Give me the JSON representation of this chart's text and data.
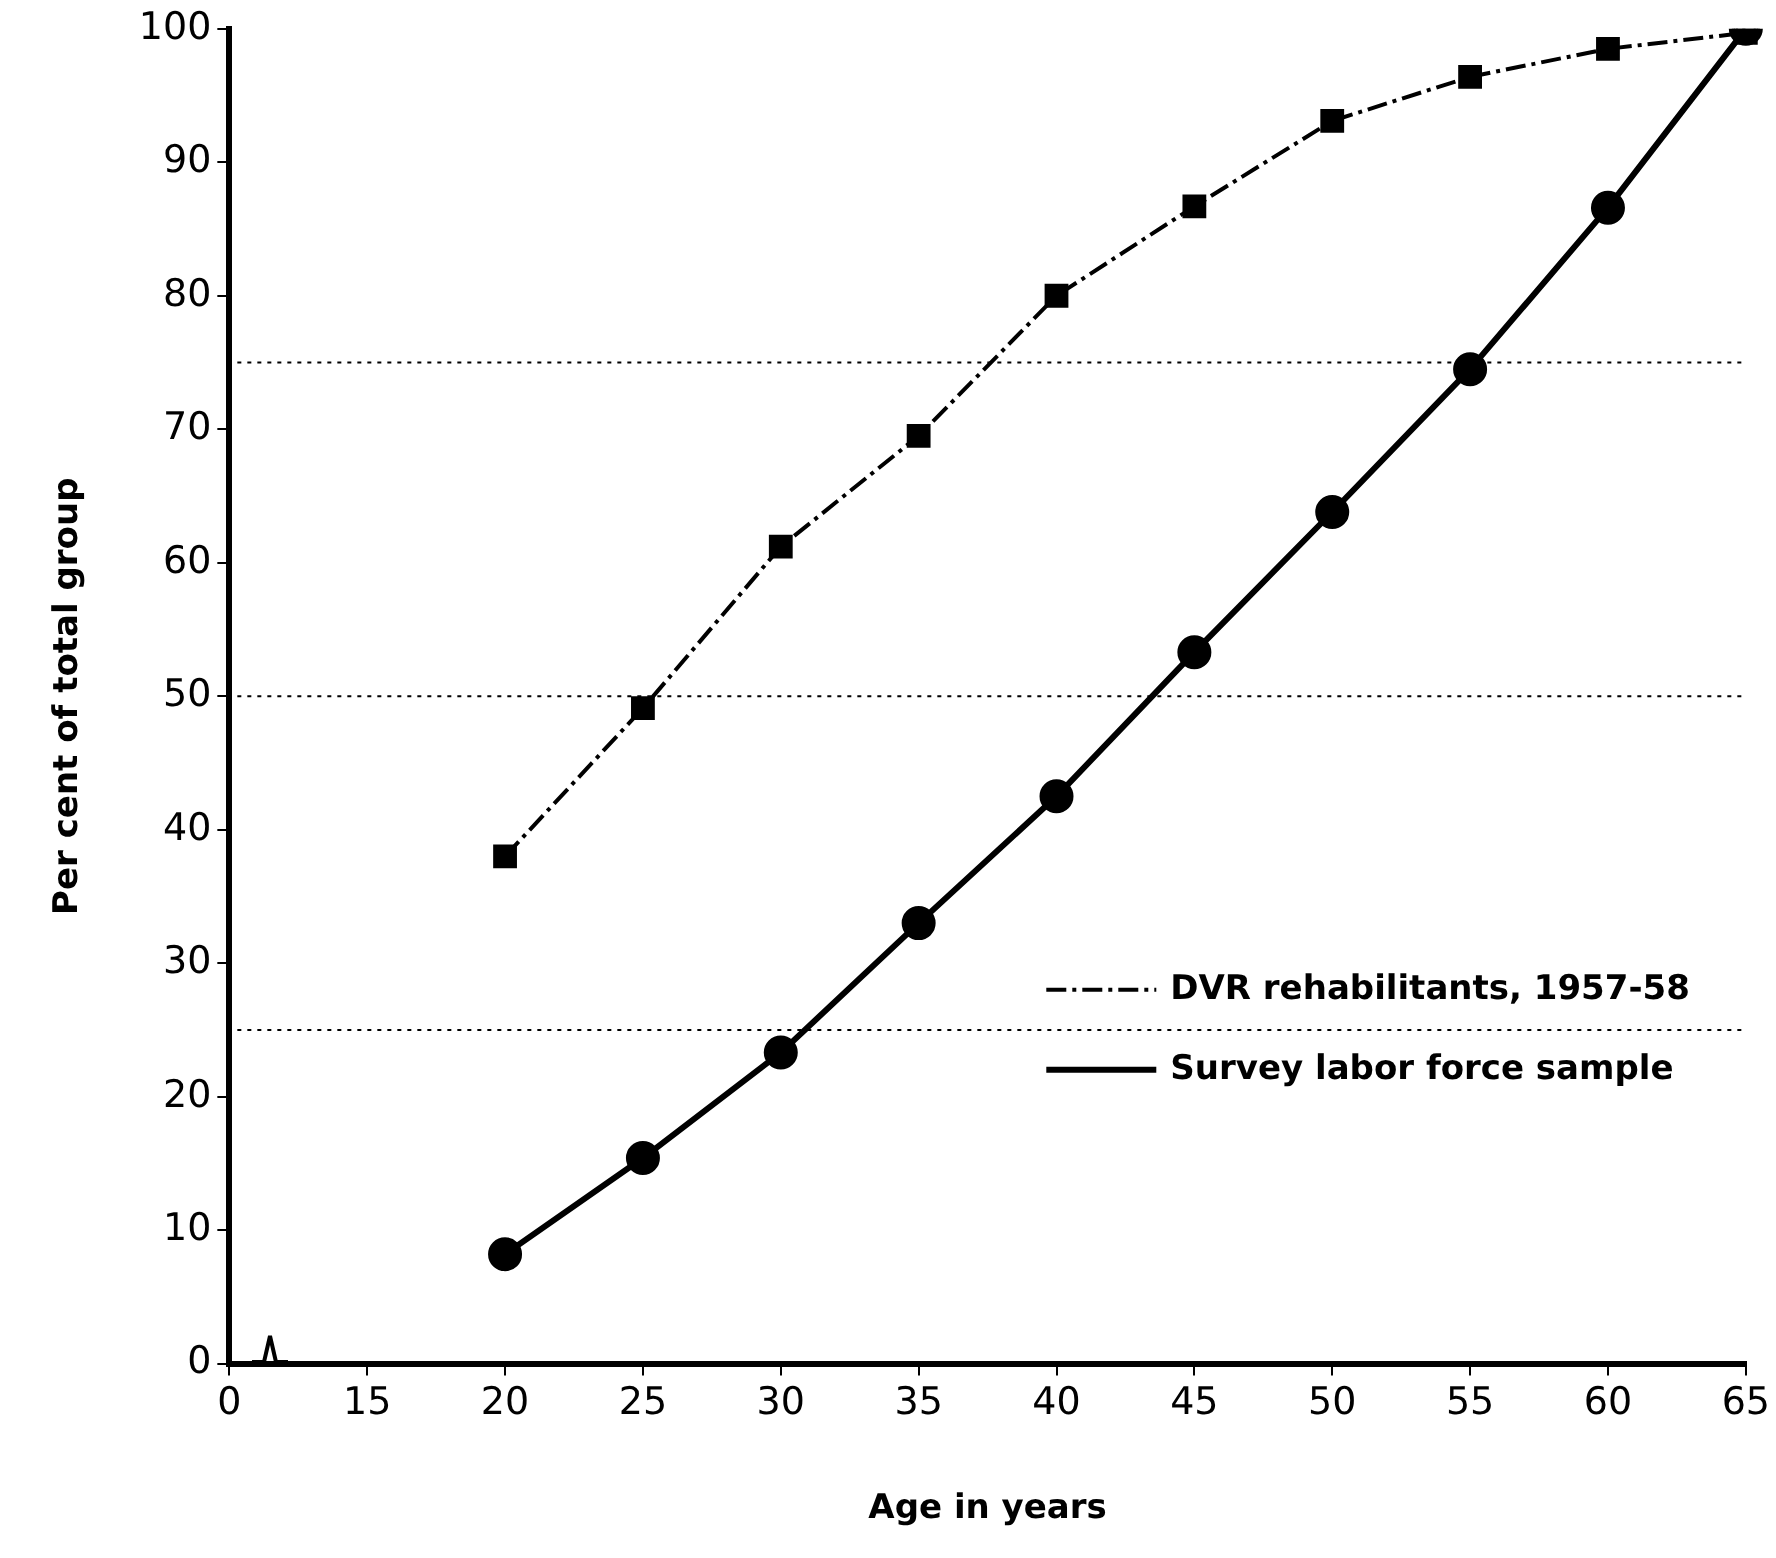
{
  "chart_data": {
    "type": "line",
    "xlabel": "Age in years",
    "ylabel": "Per cent of total group",
    "categories": [
      "0",
      "15",
      "20",
      "25",
      "30",
      "35",
      "40",
      "45",
      "50",
      "55",
      "60",
      "65"
    ],
    "series": [
      {
        "name": "DVR rehabilitants, 1957-58",
        "color": "#000000",
        "marker": "square",
        "line_style": "dashed",
        "values": [
          null,
          null,
          38,
          49.1,
          61.2,
          69.5,
          80,
          86.7,
          93.1,
          96.4,
          98.5,
          99.7
        ]
      },
      {
        "name": "Survey labor force sample",
        "color": "#000000",
        "marker": "circle",
        "line_style": "solid",
        "values": [
          null,
          null,
          8.2,
          15.4,
          23.3,
          33,
          42.5,
          53.3,
          63.8,
          74.5,
          86.6,
          100
        ]
      }
    ],
    "ylim": [
      0,
      100
    ],
    "yticks": [
      0,
      10,
      20,
      30,
      40,
      50,
      60,
      70,
      80,
      90,
      100
    ],
    "grid": false,
    "legend": "bottom right",
    "ref_lines": [
      {
        "axis": "y",
        "value": 75,
        "line_style": "dotted"
      },
      {
        "axis": "y",
        "value": 50,
        "line_style": "dotted"
      },
      {
        "axis": "y",
        "value": 25,
        "line_style": "dotted"
      }
    ]
  }
}
